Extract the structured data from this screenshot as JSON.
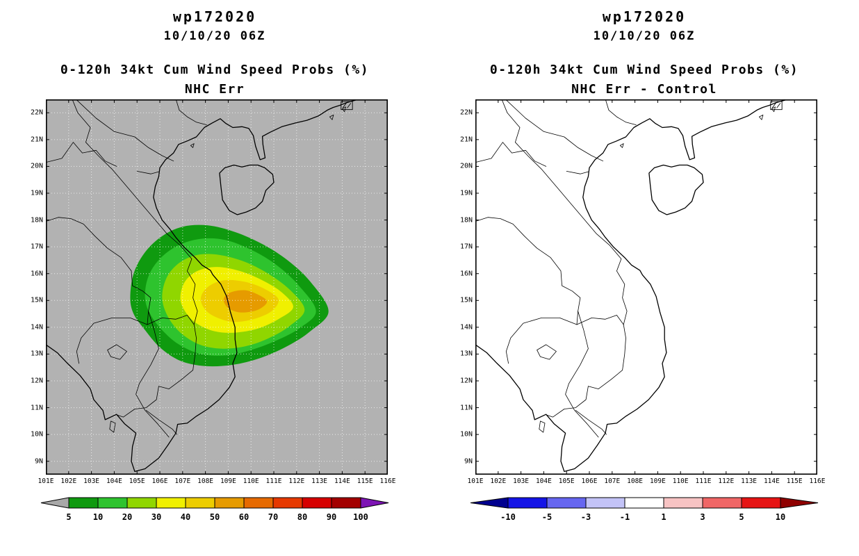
{
  "axes": {
    "lon_min": 101,
    "lon_max": 116,
    "lat_min": 8.5,
    "lat_max": 22.5,
    "lat_labels": [
      "22N",
      "21N",
      "20N",
      "19N",
      "18N",
      "17N",
      "16N",
      "15N",
      "14N",
      "13N",
      "12N",
      "11N",
      "10N",
      "9N"
    ],
    "lon_labels": [
      "101E",
      "102E",
      "103E",
      "104E",
      "105E",
      "106E",
      "107E",
      "108E",
      "109E",
      "110E",
      "111E",
      "112E",
      "113E",
      "114E",
      "115E",
      "116E"
    ]
  },
  "panels": [
    {
      "name": "nhc-err",
      "title": "wp172020",
      "date": "10/10/20 06Z",
      "subtitle_line1": "0-120h 34kt Cum Wind Speed Probs (%)",
      "subtitle_line2": "NHC Err",
      "map_bg": "#b2b2b2",
      "show_contours": true,
      "colorbar": {
        "labels": [
          "5",
          "10",
          "20",
          "30",
          "40",
          "50",
          "60",
          "70",
          "80",
          "90",
          "100"
        ],
        "colors": [
          "#a8a8a8",
          "#0f9a0f",
          "#2ec32e",
          "#90d600",
          "#f0f000",
          "#edcd00",
          "#e69b00",
          "#e66a00",
          "#e63900",
          "#d60000",
          "#a30000",
          "#7d14b4"
        ]
      }
    },
    {
      "name": "nhc-err-minus-control",
      "title": "wp172020",
      "date": "10/10/20 06Z",
      "subtitle_line1": "0-120h 34kt Cum Wind Speed Probs (%)",
      "subtitle_line2": "NHC Err - Control",
      "map_bg": "#ffffff",
      "show_contours": false,
      "colorbar": {
        "labels": [
          "-10",
          "-5",
          "-3",
          "-1",
          "1",
          "3",
          "5",
          "10"
        ],
        "colors": [
          "#00008f",
          "#1414e6",
          "#6666f0",
          "#c3c3f7",
          "#ffffff",
          "#f7c3c3",
          "#f06666",
          "#e61414",
          "#8f0000"
        ]
      }
    }
  ],
  "chart_data": {
    "type": "contour",
    "title": "wp172020 10/10/20 06Z  0-120h 34kt Cum Wind Speed Probs (%)",
    "panels": [
      {
        "name": "NHC Err",
        "levels": [
          5,
          10,
          20,
          30,
          40,
          50,
          60,
          70,
          80,
          90,
          100
        ],
        "units": "%",
        "max_band": "50-60",
        "center_lonlat": [
          109.7,
          15.0
        ]
      },
      {
        "name": "NHC Err - Control",
        "levels": [
          -10,
          -5,
          -3,
          -1,
          1,
          3,
          5,
          10
        ],
        "units": "%",
        "shaded_regions": "none"
      }
    ],
    "contours": [
      {
        "level": 5,
        "color": "#0f9a0f",
        "points": [
          [
            104.7,
            15.1
          ],
          [
            104.85,
            16.0
          ],
          [
            105.35,
            16.8
          ],
          [
            106.1,
            17.4
          ],
          [
            107.0,
            17.75
          ],
          [
            108.1,
            17.8
          ],
          [
            109.3,
            17.55
          ],
          [
            110.5,
            17.1
          ],
          [
            111.6,
            16.5
          ],
          [
            112.6,
            15.7
          ],
          [
            113.4,
            14.6
          ],
          [
            112.6,
            13.85
          ],
          [
            111.6,
            13.3
          ],
          [
            110.4,
            12.85
          ],
          [
            109.2,
            12.6
          ],
          [
            108.0,
            12.55
          ],
          [
            106.9,
            12.75
          ],
          [
            106.0,
            13.25
          ],
          [
            105.3,
            13.95
          ],
          [
            104.85,
            14.5
          ]
        ]
      },
      {
        "level": 10,
        "color": "#2ec32e",
        "points": [
          [
            105.35,
            15.1
          ],
          [
            105.5,
            15.9
          ],
          [
            106.0,
            16.55
          ],
          [
            106.8,
            17.05
          ],
          [
            107.8,
            17.3
          ],
          [
            108.9,
            17.25
          ],
          [
            110.1,
            16.85
          ],
          [
            111.15,
            16.3
          ],
          [
            112.1,
            15.55
          ],
          [
            112.85,
            14.6
          ],
          [
            112.1,
            13.95
          ],
          [
            111.1,
            13.5
          ],
          [
            110.0,
            13.15
          ],
          [
            108.9,
            12.95
          ],
          [
            107.8,
            13.0
          ],
          [
            106.85,
            13.35
          ],
          [
            106.15,
            13.85
          ],
          [
            105.6,
            14.45
          ]
        ]
      },
      {
        "level": 20,
        "color": "#90d600",
        "points": [
          [
            106.1,
            15.1
          ],
          [
            106.3,
            15.85
          ],
          [
            106.85,
            16.4
          ],
          [
            107.65,
            16.7
          ],
          [
            108.6,
            16.7
          ],
          [
            109.7,
            16.45
          ],
          [
            110.75,
            16.0
          ],
          [
            111.7,
            15.4
          ],
          [
            112.35,
            14.65
          ],
          [
            111.7,
            14.05
          ],
          [
            110.8,
            13.6
          ],
          [
            109.8,
            13.3
          ],
          [
            108.75,
            13.2
          ],
          [
            107.75,
            13.35
          ],
          [
            106.9,
            13.8
          ],
          [
            106.35,
            14.4
          ]
        ]
      },
      {
        "level": 30,
        "color": "#f0f000",
        "points": [
          [
            106.9,
            15.1
          ],
          [
            107.1,
            15.7
          ],
          [
            107.65,
            16.1
          ],
          [
            108.5,
            16.25
          ],
          [
            109.5,
            16.1
          ],
          [
            110.5,
            15.75
          ],
          [
            111.35,
            15.3
          ],
          [
            111.85,
            14.75
          ],
          [
            111.2,
            14.3
          ],
          [
            110.3,
            13.95
          ],
          [
            109.3,
            13.8
          ],
          [
            108.4,
            13.85
          ],
          [
            107.6,
            14.15
          ],
          [
            107.1,
            14.6
          ]
        ]
      },
      {
        "level": 40,
        "color": "#edcd00",
        "points": [
          [
            107.8,
            15.1
          ],
          [
            108.1,
            15.5
          ],
          [
            108.8,
            15.75
          ],
          [
            109.7,
            15.7
          ],
          [
            110.55,
            15.45
          ],
          [
            111.2,
            15.05
          ],
          [
            110.9,
            14.6
          ],
          [
            110.1,
            14.3
          ],
          [
            109.2,
            14.2
          ],
          [
            108.4,
            14.4
          ],
          [
            107.95,
            14.7
          ]
        ]
      },
      {
        "level": 50,
        "color": "#e69b00",
        "points": [
          [
            108.8,
            15.05
          ],
          [
            109.1,
            15.3
          ],
          [
            109.75,
            15.38
          ],
          [
            110.35,
            15.2
          ],
          [
            110.7,
            14.95
          ],
          [
            110.3,
            14.65
          ],
          [
            109.55,
            14.55
          ],
          [
            109.0,
            14.72
          ]
        ]
      }
    ]
  }
}
